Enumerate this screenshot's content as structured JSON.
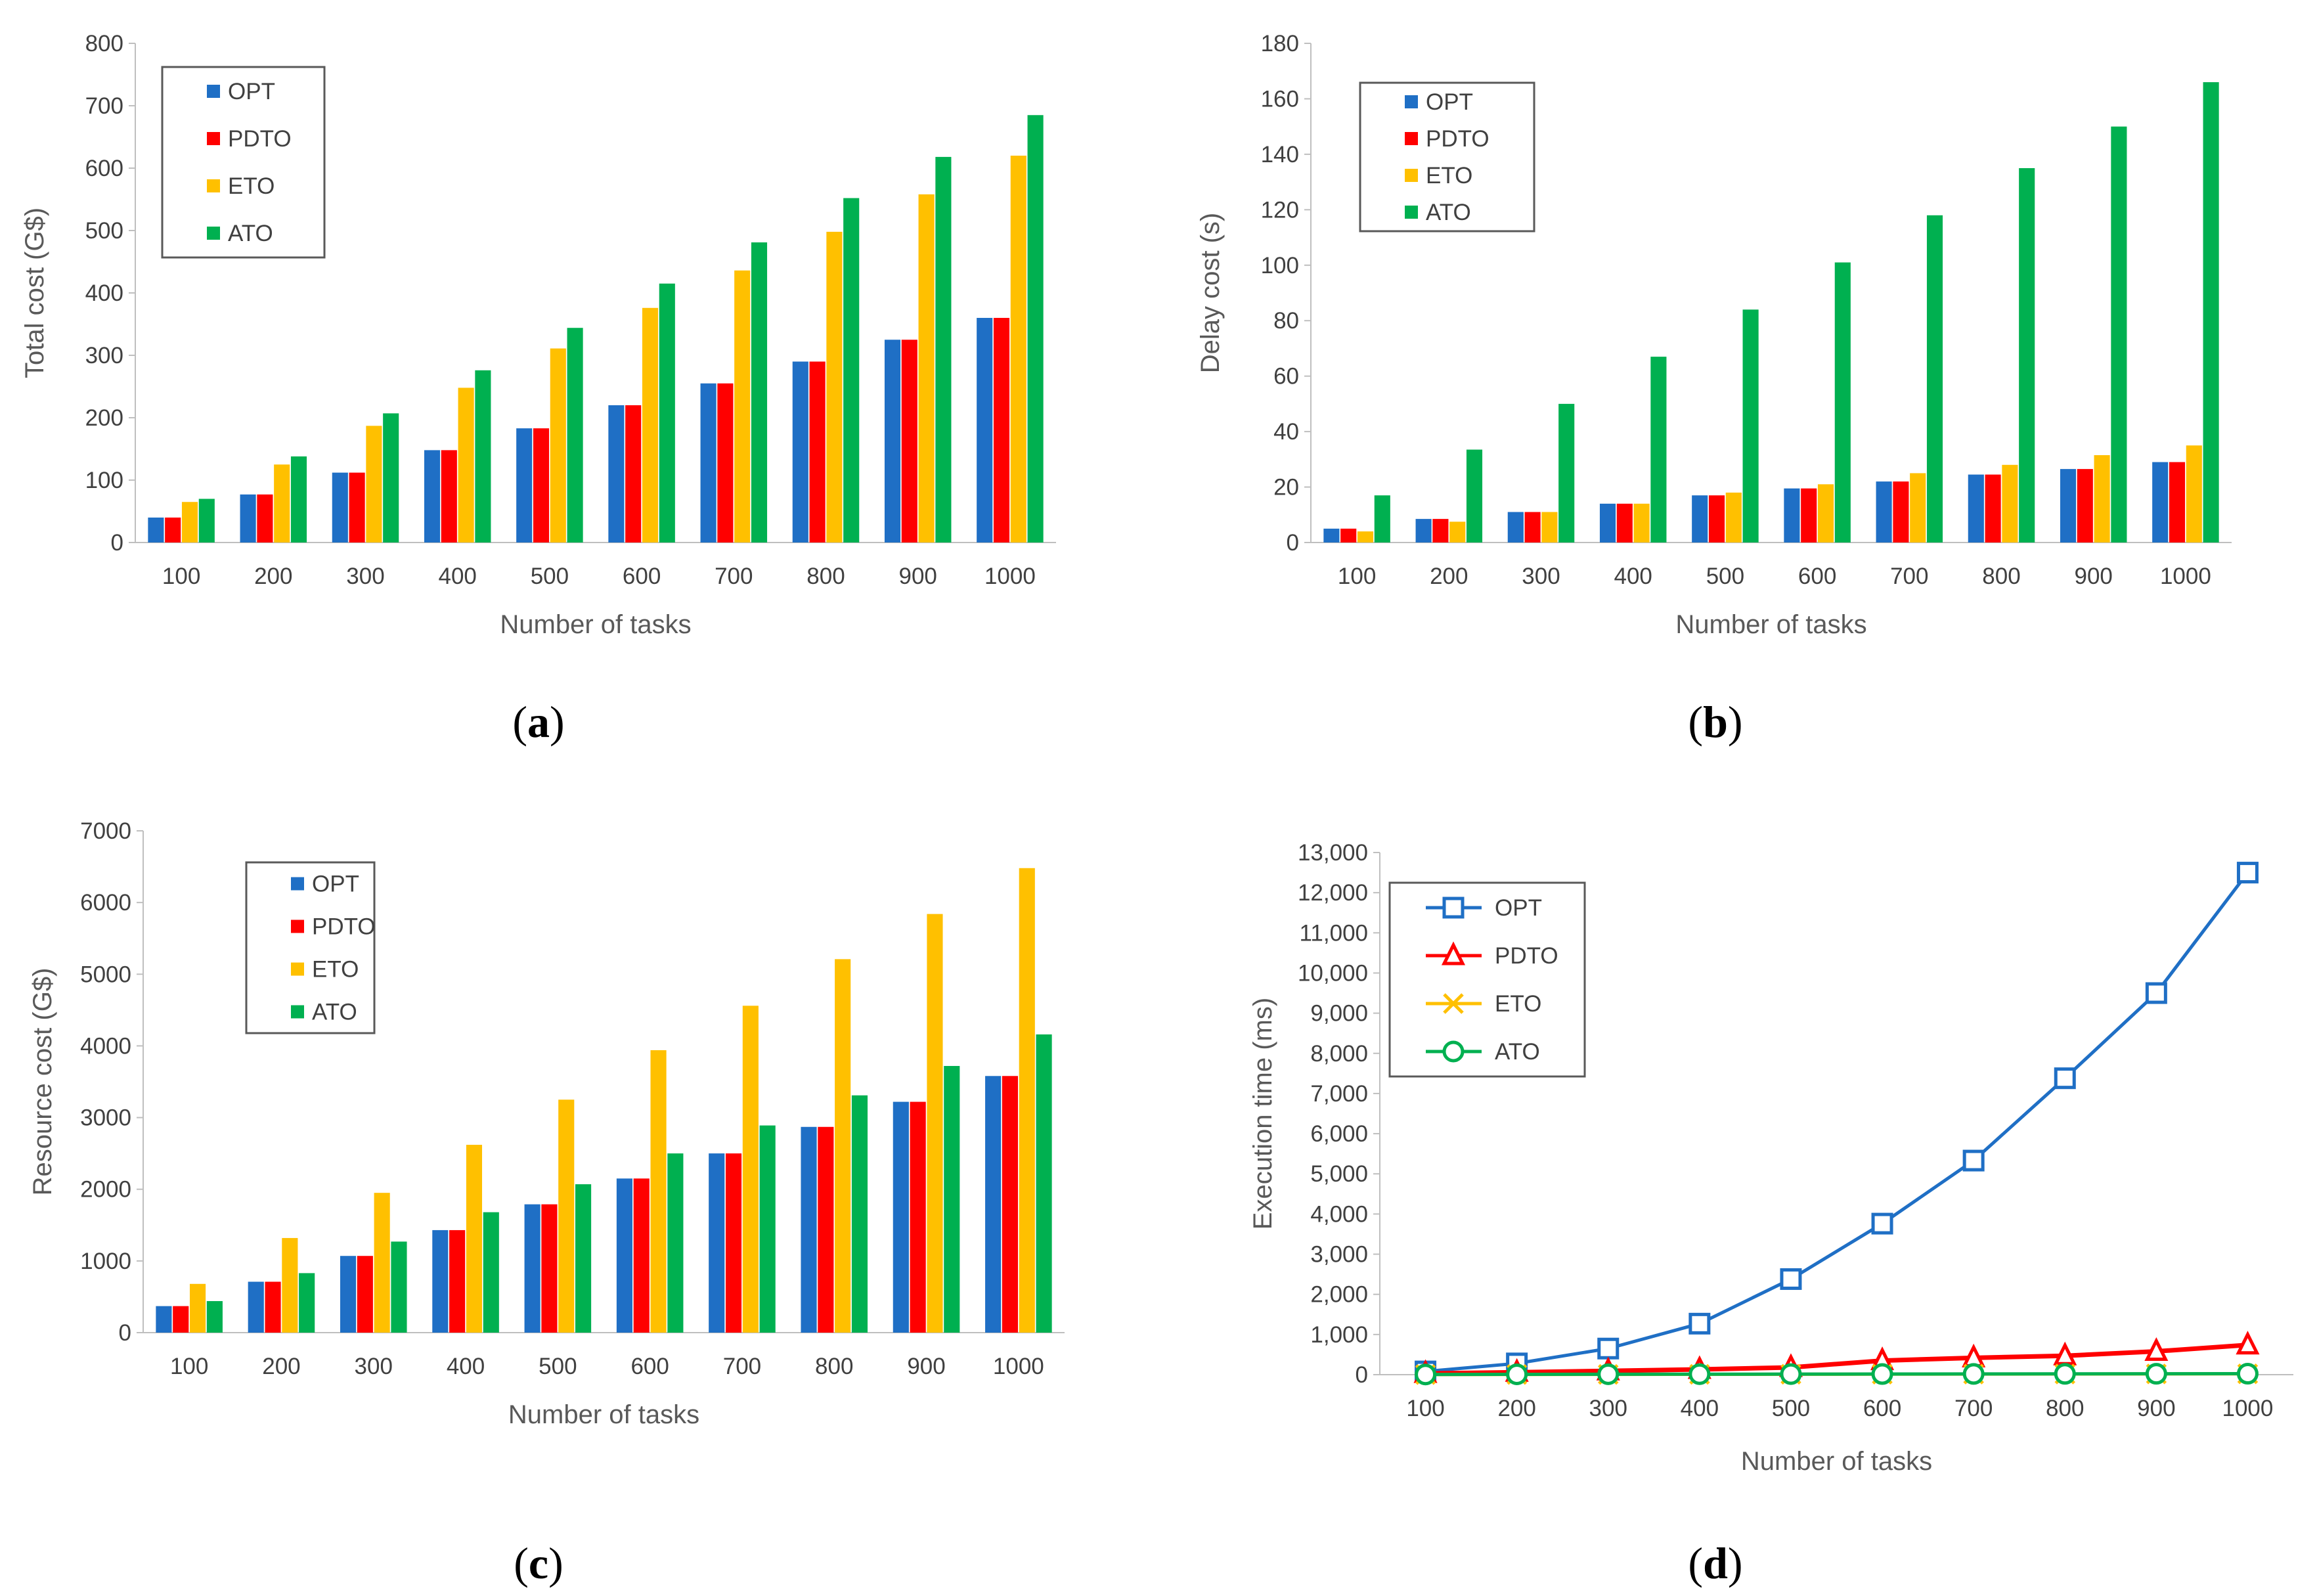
{
  "figure": {
    "charts": [
      {
        "panel": "a",
        "type": "bar",
        "xlabel": "Number of tasks",
        "ylabel": "Total cost (G$)",
        "categories": [
          "100",
          "200",
          "300",
          "400",
          "500",
          "600",
          "700",
          "800",
          "900",
          "1000"
        ],
        "ylim": [
          0,
          800
        ],
        "yticks": [
          "0",
          "100",
          "200",
          "300",
          "400",
          "500",
          "600",
          "700",
          "800"
        ],
        "legend": [
          "OPT",
          "PDTO",
          "ETO",
          "ATO"
        ],
        "series": [
          {
            "name": "OPT",
            "color": "#1f6fc5",
            "values": [
              40,
              77,
              112,
              148,
              183,
              220,
              255,
              290,
              325,
              360
            ]
          },
          {
            "name": "PDTO",
            "color": "#ff0000",
            "values": [
              40,
              77,
              112,
              148,
              183,
              220,
              255,
              290,
              325,
              360
            ]
          },
          {
            "name": "ETO",
            "color": "#ffc000",
            "values": [
              65,
              125,
              187,
              248,
              311,
              376,
              436,
              498,
              558,
              620
            ]
          },
          {
            "name": "ATO",
            "color": "#00b050",
            "values": [
              70,
              138,
              207,
              276,
              344,
              415,
              481,
              552,
              618,
              685
            ]
          }
        ]
      },
      {
        "panel": "b",
        "type": "bar",
        "xlabel": "Number of tasks",
        "ylabel": "Delay cost (s)",
        "categories": [
          "100",
          "200",
          "300",
          "400",
          "500",
          "600",
          "700",
          "800",
          "900",
          "1000"
        ],
        "ylim": [
          0,
          180
        ],
        "yticks": [
          "0",
          "20",
          "40",
          "60",
          "80",
          "100",
          "120",
          "140",
          "160",
          "180"
        ],
        "legend": [
          "OPT",
          "PDTO",
          "ETO",
          "ATO"
        ],
        "series": [
          {
            "name": "OPT",
            "color": "#1f6fc5",
            "values": [
              5,
              8.5,
              11,
              14,
              17,
              19.5,
              22,
              24.5,
              26.5,
              29
            ]
          },
          {
            "name": "PDTO",
            "color": "#ff0000",
            "values": [
              5,
              8.5,
              11,
              14,
              17,
              19.5,
              22,
              24.5,
              26.5,
              29
            ]
          },
          {
            "name": "ETO",
            "color": "#ffc000",
            "values": [
              4,
              7.5,
              11,
              14,
              18,
              21,
              25,
              28,
              31.5,
              35
            ]
          },
          {
            "name": "ATO",
            "color": "#00b050",
            "values": [
              17,
              33.5,
              50,
              67,
              84,
              101,
              118,
              135,
              150,
              166
            ]
          }
        ]
      },
      {
        "panel": "c",
        "type": "bar",
        "xlabel": "Number of tasks",
        "ylabel": "Resource cost (G$)",
        "categories": [
          "100",
          "200",
          "300",
          "400",
          "500",
          "600",
          "700",
          "800",
          "900",
          "1000"
        ],
        "ylim": [
          0,
          7000
        ],
        "yticks": [
          "0",
          "1000",
          "2000",
          "3000",
          "4000",
          "5000",
          "6000",
          "7000"
        ],
        "legend": [
          "OPT",
          "PDTO",
          "ETO",
          "ATO"
        ],
        "series": [
          {
            "name": "OPT",
            "color": "#1f6fc5",
            "values": [
              370,
              710,
              1070,
              1430,
              1790,
              2150,
              2500,
              2870,
              3220,
              3580
            ]
          },
          {
            "name": "PDTO",
            "color": "#ff0000",
            "values": [
              370,
              710,
              1070,
              1430,
              1790,
              2150,
              2500,
              2870,
              3220,
              3580
            ]
          },
          {
            "name": "ETO",
            "color": "#ffc000",
            "values": [
              680,
              1320,
              1950,
              2620,
              3250,
              3940,
              4560,
              5210,
              5840,
              6480
            ]
          },
          {
            "name": "ATO",
            "color": "#00b050",
            "values": [
              440,
              830,
              1270,
              1680,
              2070,
              2500,
              2890,
              3310,
              3720,
              4160
            ]
          }
        ]
      },
      {
        "panel": "d",
        "type": "line",
        "xlabel": "Number of tasks",
        "ylabel": "Execution time (ms)",
        "categories": [
          "100",
          "200",
          "300",
          "400",
          "500",
          "600",
          "700",
          "800",
          "900",
          "1000"
        ],
        "ylim": [
          0,
          13000
        ],
        "yticks": [
          "0",
          "1,000",
          "2,000",
          "3,000",
          "4,000",
          "5,000",
          "6,000",
          "7,000",
          "8,000",
          "9,000",
          "10,000",
          "11,000",
          "12,000",
          "13,000"
        ],
        "legend": [
          "OPT",
          "PDTO",
          "ETO",
          "ATO"
        ],
        "series": [
          {
            "name": "OPT",
            "color": "#1f6fc5",
            "marker": "square",
            "values": [
              80,
              280,
              650,
              1270,
              2380,
              3760,
              5330,
              7380,
              9500,
              12500
            ]
          },
          {
            "name": "PDTO",
            "color": "#ff0000",
            "marker": "triangle",
            "values": [
              30,
              60,
              95,
              130,
              180,
              350,
              420,
              470,
              580,
              740
            ]
          },
          {
            "name": "ETO",
            "color": "#ffc000",
            "marker": "x",
            "values": [
              2,
              4,
              6,
              8,
              10,
              12,
              14,
              16,
              18,
              20
            ]
          },
          {
            "name": "ATO",
            "color": "#00b050",
            "marker": "circle",
            "values": [
              5,
              8,
              10,
              12,
              14,
              16,
              18,
              20,
              22,
              24
            ]
          }
        ]
      }
    ]
  },
  "captions": {
    "a": "a",
    "b": "b",
    "c": "c",
    "d": "d"
  }
}
